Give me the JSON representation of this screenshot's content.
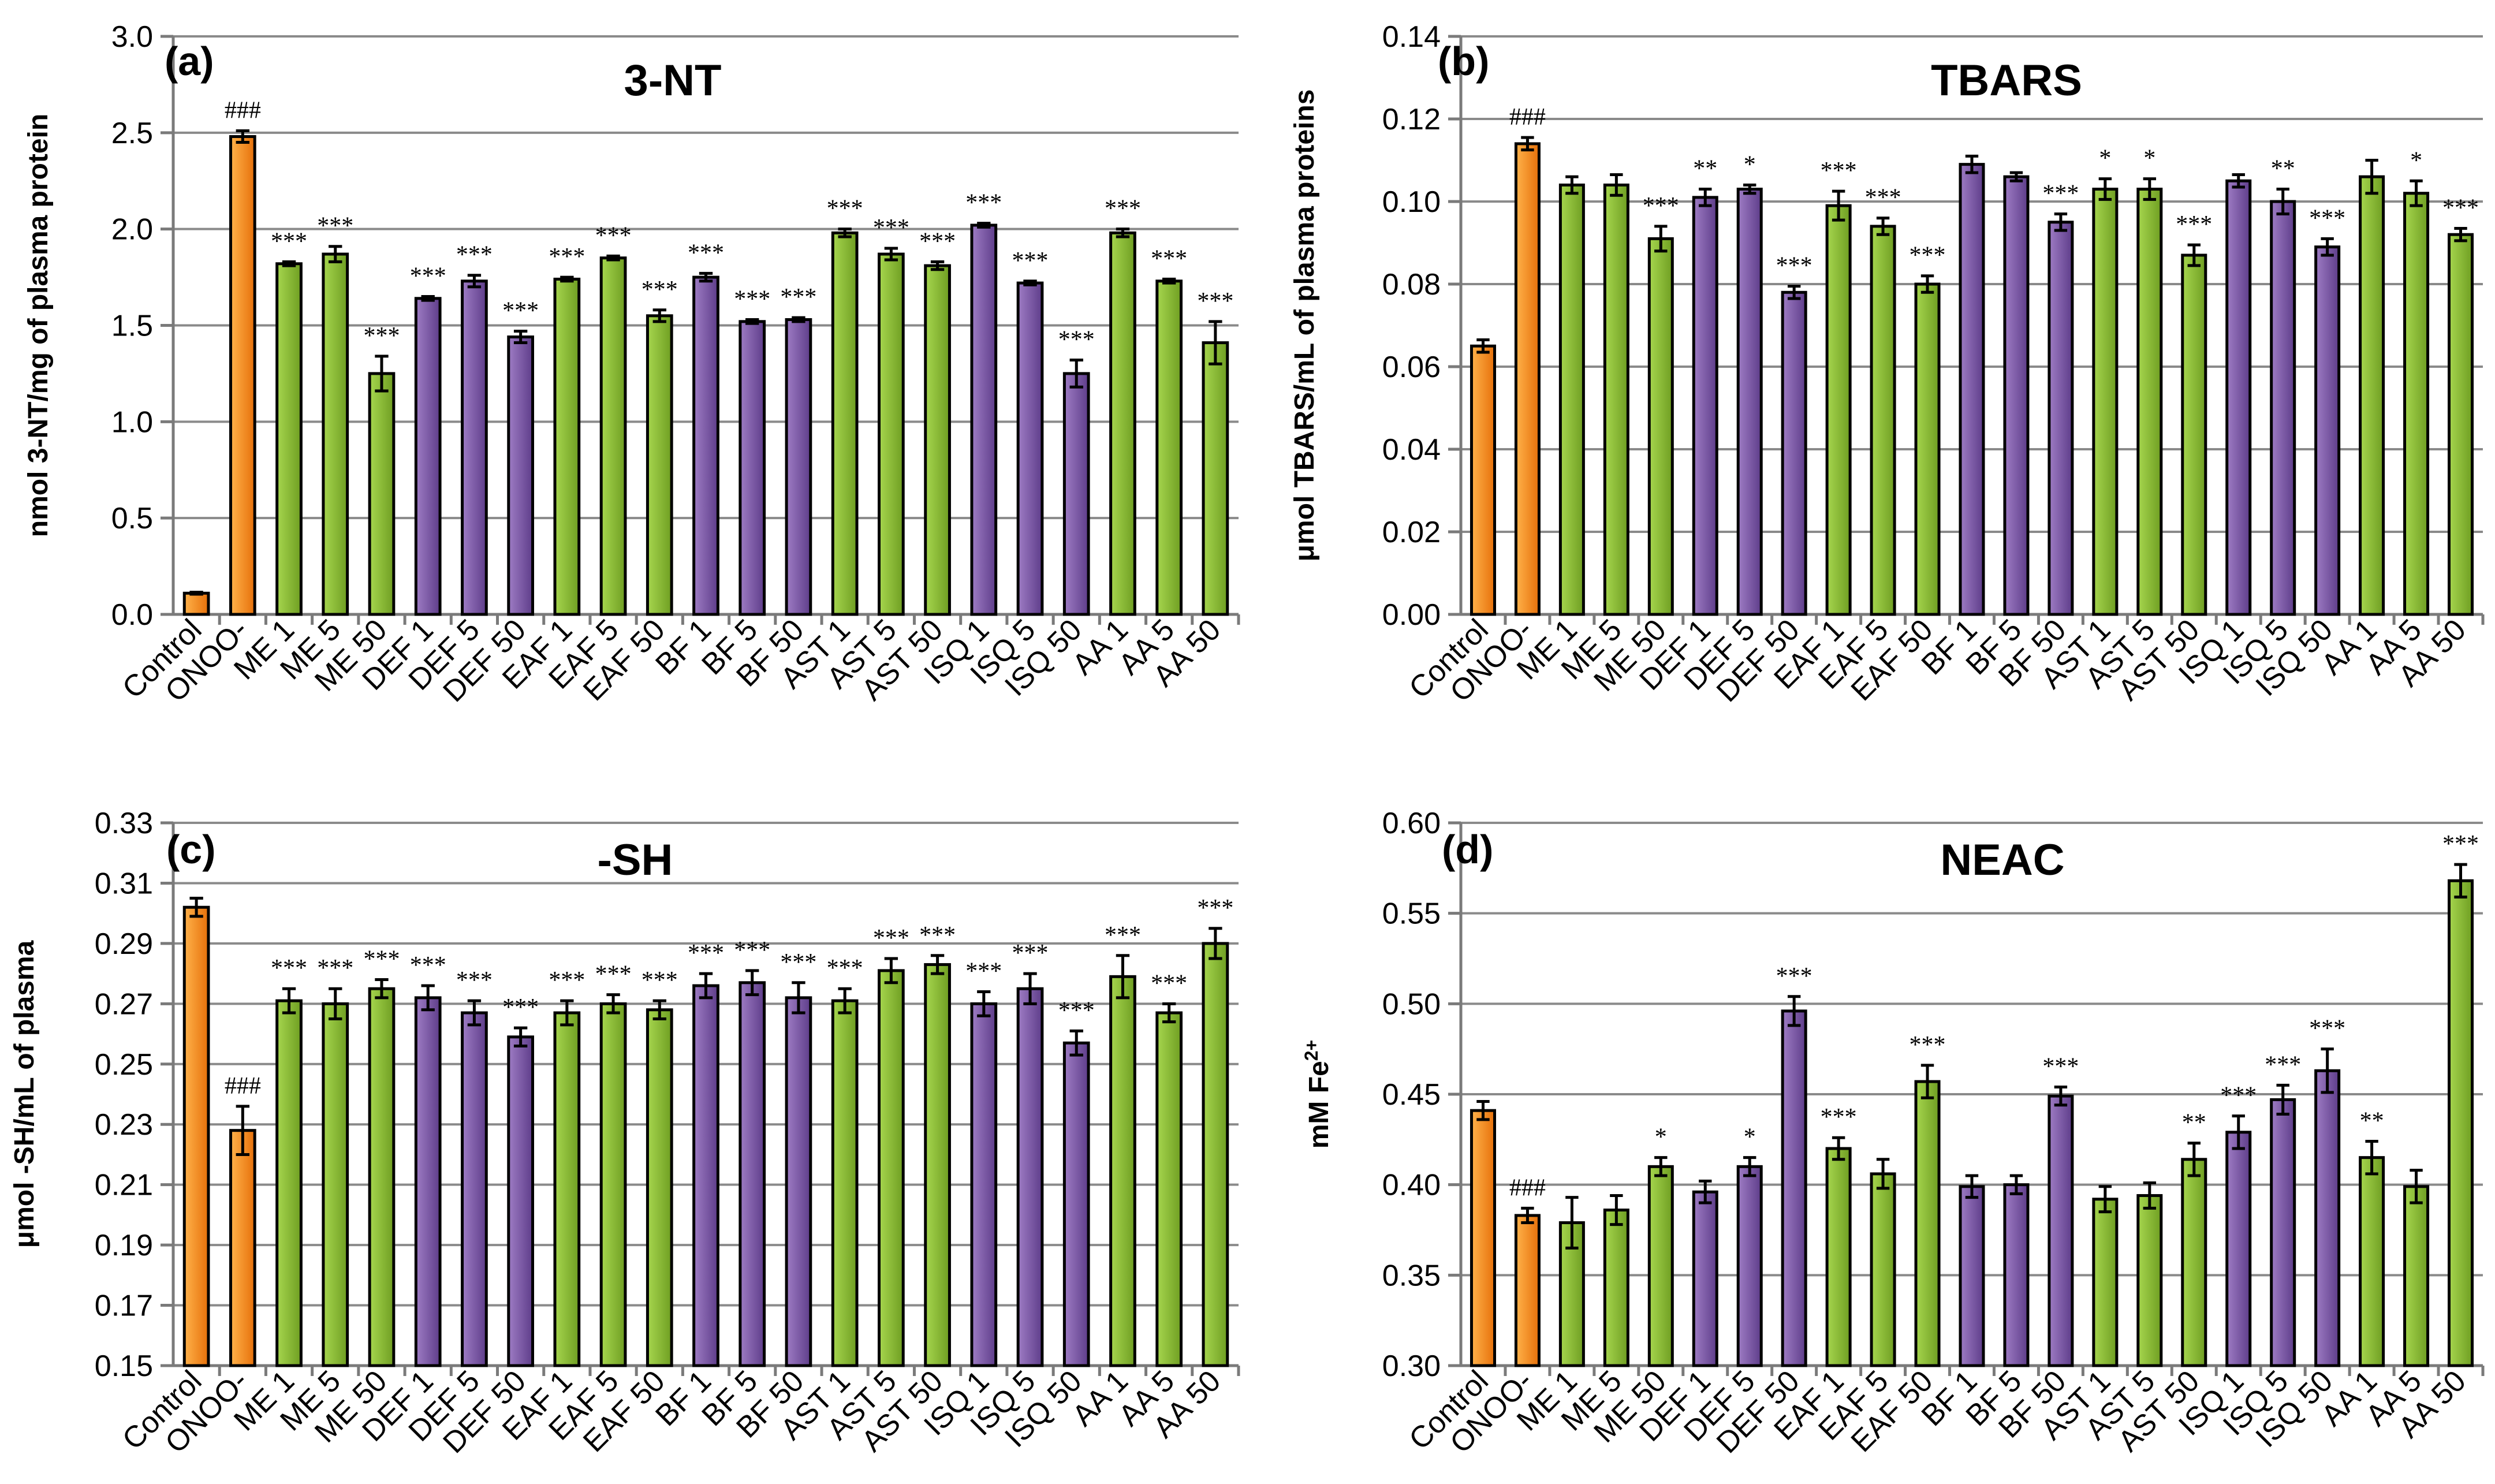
{
  "colors": {
    "orange_light": "#ffb24a",
    "orange_dark": "#e6700a",
    "green_light": "#a6d64e",
    "green_dark": "#6f9e22",
    "purple_light": "#9e7cc4",
    "purple_dark": "#5e3d8a"
  },
  "categories": [
    "Control",
    "ONOO-",
    "ME 1",
    "ME 5",
    "ME 50",
    "DEF 1",
    "DEF 5",
    "DEF 50",
    "EAF 1",
    "EAF 5",
    "EAF 50",
    "BF 1",
    "BF 5",
    "BF 50",
    "AST 1",
    "AST 5",
    "AST 50",
    "ISQ 1",
    "ISQ 5",
    "ISQ 50",
    "AA 1",
    "AA 5",
    "AA 50"
  ],
  "chart_data": [
    {
      "type": "bar",
      "panel_label": "(a)",
      "title": "3-NT",
      "ylabel": "nmol 3-NT/mg of plasma protein",
      "ylim": [
        0,
        3.0
      ],
      "yticks": [
        "0.0",
        "0.5",
        "1.0",
        "1.5",
        "2.0",
        "2.5",
        "3.0"
      ],
      "ytick_values": [
        0,
        0.5,
        1.0,
        1.5,
        2.0,
        2.5,
        3.0
      ],
      "colors": [
        "orange",
        "orange",
        "green",
        "green",
        "green",
        "purple",
        "purple",
        "purple",
        "green",
        "green",
        "green",
        "purple",
        "purple",
        "purple",
        "green",
        "green",
        "green",
        "purple",
        "purple",
        "purple",
        "green",
        "green",
        "green"
      ],
      "values": [
        0.11,
        2.48,
        1.82,
        1.87,
        1.25,
        1.64,
        1.73,
        1.44,
        1.74,
        1.85,
        1.55,
        1.75,
        1.52,
        1.53,
        1.98,
        1.87,
        1.81,
        2.02,
        1.72,
        1.25,
        1.98,
        1.73,
        1.41
      ],
      "errors": [
        0.005,
        0.03,
        0.01,
        0.04,
        0.09,
        0.01,
        0.03,
        0.03,
        0.01,
        0.01,
        0.03,
        0.02,
        0.01,
        0.01,
        0.02,
        0.03,
        0.02,
        0.01,
        0.01,
        0.07,
        0.02,
        0.01,
        0.11
      ],
      "sig": [
        "",
        "###",
        "***",
        "***",
        "***",
        "***",
        "***",
        "***",
        "***",
        "***",
        "***",
        "***",
        "***",
        "***",
        "***",
        "***",
        "***",
        "***",
        "***",
        "***",
        "***",
        "***",
        "***"
      ]
    },
    {
      "type": "bar",
      "panel_label": "(b)",
      "title": "TBARS",
      "ylabel": "μmol TBARS/mL of plasma proteins",
      "ylim": [
        0,
        0.14
      ],
      "yticks": [
        "0.00",
        "0.02",
        "0.04",
        "0.06",
        "0.08",
        "0.10",
        "0.12",
        "0.14"
      ],
      "ytick_values": [
        0,
        0.02,
        0.04,
        0.06,
        0.08,
        0.1,
        0.12,
        0.14
      ],
      "colors": [
        "orange",
        "orange",
        "green",
        "green",
        "green",
        "purple",
        "purple",
        "purple",
        "green",
        "green",
        "green",
        "purple",
        "purple",
        "purple",
        "green",
        "green",
        "green",
        "purple",
        "purple",
        "purple",
        "green",
        "green",
        "green"
      ],
      "values": [
        0.065,
        0.114,
        0.104,
        0.104,
        0.091,
        0.101,
        0.103,
        0.078,
        0.099,
        0.094,
        0.08,
        0.109,
        0.106,
        0.095,
        0.103,
        0.103,
        0.087,
        0.105,
        0.1,
        0.089,
        0.106,
        0.102,
        0.092
      ],
      "errors": [
        0.0015,
        0.0015,
        0.002,
        0.0025,
        0.003,
        0.002,
        0.001,
        0.0015,
        0.0035,
        0.002,
        0.002,
        0.002,
        0.001,
        0.002,
        0.0025,
        0.0025,
        0.0025,
        0.0015,
        0.003,
        0.002,
        0.004,
        0.003,
        0.0015
      ],
      "sig": [
        "",
        "###",
        "",
        "",
        "***",
        "**",
        "*",
        "***",
        "***",
        "***",
        "***",
        "",
        "",
        "***",
        "*",
        "*",
        "***",
        "",
        "**",
        "***",
        "",
        "*",
        "***"
      ]
    },
    {
      "type": "bar",
      "panel_label": "(c)",
      "title": "-SH",
      "ylabel": "μmol -SH/mL of plasma",
      "ylim": [
        0.15,
        0.33
      ],
      "yticks": [
        "0.15",
        "0.17",
        "0.19",
        "0.21",
        "0.23",
        "0.25",
        "0.27",
        "0.29",
        "0.31",
        "0.33"
      ],
      "ytick_values": [
        0.15,
        0.17,
        0.19,
        0.21,
        0.23,
        0.25,
        0.27,
        0.29,
        0.31,
        0.33
      ],
      "colors": [
        "orange",
        "orange",
        "green",
        "green",
        "green",
        "purple",
        "purple",
        "purple",
        "green",
        "green",
        "green",
        "purple",
        "purple",
        "purple",
        "green",
        "green",
        "green",
        "purple",
        "purple",
        "purple",
        "green",
        "green",
        "green"
      ],
      "values": [
        0.302,
        0.228,
        0.271,
        0.27,
        0.275,
        0.272,
        0.267,
        0.259,
        0.267,
        0.27,
        0.268,
        0.276,
        0.277,
        0.272,
        0.271,
        0.281,
        0.283,
        0.27,
        0.275,
        0.257,
        0.279,
        0.267,
        0.29
      ],
      "errors": [
        0.003,
        0.008,
        0.004,
        0.005,
        0.003,
        0.004,
        0.004,
        0.003,
        0.004,
        0.003,
        0.003,
        0.004,
        0.004,
        0.005,
        0.004,
        0.004,
        0.003,
        0.004,
        0.005,
        0.004,
        0.007,
        0.003,
        0.005
      ],
      "sig": [
        "",
        "###",
        "***",
        "***",
        "***",
        "***",
        "***",
        "***",
        "***",
        "***",
        "***",
        "***",
        "***",
        "***",
        "***",
        "***",
        "***",
        "***",
        "***",
        "***",
        "***",
        "***",
        "***"
      ]
    },
    {
      "type": "bar",
      "panel_label": "(d)",
      "title": "NEAC",
      "ylabel": "mM Fe",
      "ylabel_sup": "2+",
      "ylim": [
        0.3,
        0.6
      ],
      "yticks": [
        "0.30",
        "0.35",
        "0.40",
        "0.45",
        "0.50",
        "0.55",
        "0.60"
      ],
      "ytick_values": [
        0.3,
        0.35,
        0.4,
        0.45,
        0.5,
        0.55,
        0.6
      ],
      "colors": [
        "orange",
        "orange",
        "green",
        "green",
        "green",
        "purple",
        "purple",
        "purple",
        "green",
        "green",
        "green",
        "purple",
        "purple",
        "purple",
        "green",
        "green",
        "green",
        "purple",
        "purple",
        "purple",
        "green",
        "green",
        "green"
      ],
      "values": [
        0.441,
        0.383,
        0.379,
        0.386,
        0.41,
        0.396,
        0.41,
        0.496,
        0.42,
        0.406,
        0.457,
        0.399,
        0.4,
        0.449,
        0.392,
        0.394,
        0.414,
        0.429,
        0.447,
        0.463,
        0.415,
        0.399,
        0.568
      ],
      "errors": [
        0.005,
        0.004,
        0.014,
        0.008,
        0.005,
        0.006,
        0.005,
        0.008,
        0.006,
        0.008,
        0.009,
        0.006,
        0.005,
        0.005,
        0.007,
        0.007,
        0.009,
        0.009,
        0.008,
        0.012,
        0.009,
        0.009,
        0.009
      ],
      "sig": [
        "",
        "###",
        "",
        "",
        "*",
        "",
        "*",
        "***",
        "***",
        "",
        "***",
        "",
        "",
        "***",
        "",
        "",
        "**",
        "***",
        "***",
        "***",
        "**",
        "",
        "***"
      ]
    }
  ]
}
